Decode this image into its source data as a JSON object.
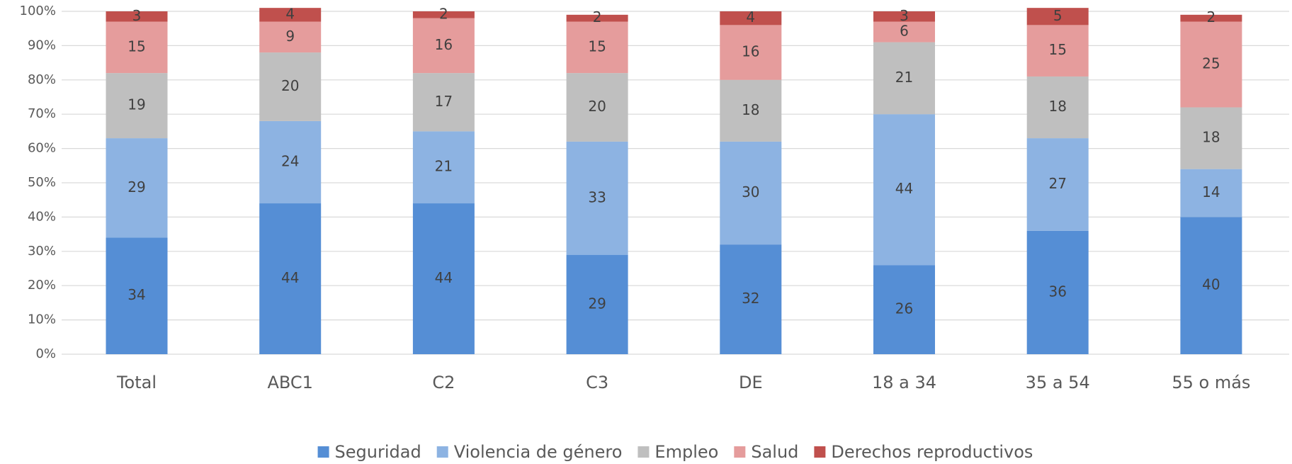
{
  "chart_data": {
    "type": "stacked_bar",
    "categories": [
      "Total",
      "ABC1",
      "C2",
      "C3",
      "DE",
      "18 a 34",
      "35 a 54",
      "55 o más"
    ],
    "series": [
      {
        "name": "Seguridad",
        "color": "#558ed5",
        "values": [
          34,
          44,
          44,
          29,
          32,
          26,
          36,
          40
        ]
      },
      {
        "name": "Violencia de género",
        "color": "#8db3e2",
        "values": [
          29,
          24,
          21,
          33,
          30,
          44,
          27,
          14
        ]
      },
      {
        "name": "Empleo",
        "color": "#bfbfbf",
        "values": [
          19,
          20,
          17,
          20,
          18,
          21,
          18,
          18
        ]
      },
      {
        "name": "Salud",
        "color": "#e59c9c",
        "values": [
          15,
          9,
          16,
          15,
          16,
          6,
          15,
          25
        ]
      },
      {
        "name": "Derechos reproductivos",
        "color": "#c0504d",
        "values": [
          3,
          4,
          2,
          2,
          4,
          3,
          5,
          2
        ]
      }
    ],
    "ylim": [
      0,
      100
    ],
    "yticks": [
      {
        "value": 0,
        "label": "0%"
      },
      {
        "value": 10,
        "label": "10%"
      },
      {
        "value": 20,
        "label": "20%"
      },
      {
        "value": 30,
        "label": "30%"
      },
      {
        "value": 40,
        "label": "40%"
      },
      {
        "value": 50,
        "label": "50%"
      },
      {
        "value": 60,
        "label": "60%"
      },
      {
        "value": 70,
        "label": "70%"
      },
      {
        "value": 80,
        "label": "80%"
      },
      {
        "value": 90,
        "label": "90%"
      },
      {
        "value": 100,
        "label": "100%"
      }
    ],
    "grid": true,
    "legend": "bottom"
  }
}
